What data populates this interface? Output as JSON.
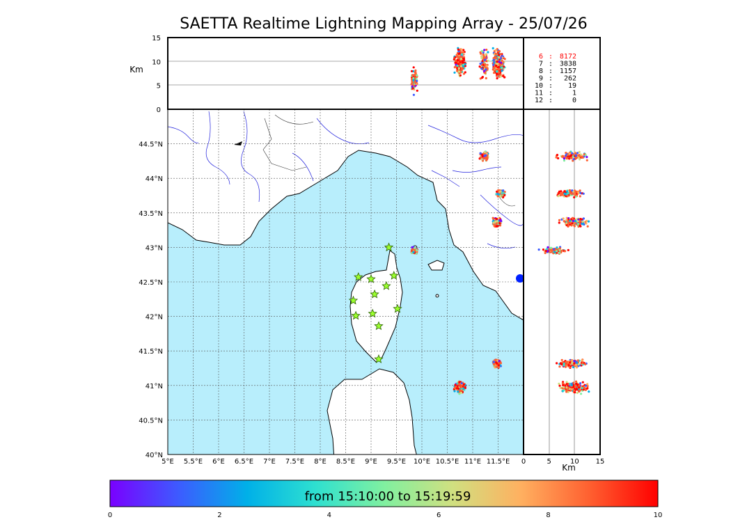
{
  "title": "SAETTA Realtime Lightning Mapping Array - 25/07/26",
  "colors": {
    "sea": "#b8eefc",
    "land": "#ffffff",
    "rivers": "#2222dd",
    "grid": "#555555",
    "station": "#9cff2e",
    "highlight_count": "#ff0000"
  },
  "map": {
    "lon_ticks": [
      "5°E",
      "5.5°E",
      "6°E",
      "6.5°E",
      "7°E",
      "7.5°E",
      "8°E",
      "8.5°E",
      "9°E",
      "9.5°E",
      "10°E",
      "10.5°E",
      "11°E",
      "11.5°E"
    ],
    "lat_ticks": [
      "40°N",
      "40.5°N",
      "41°N",
      "41.5°N",
      "42°N",
      "42.5°N",
      "43°N",
      "43.5°N",
      "44°N",
      "44.5°N"
    ],
    "lon_range": [
      5.0,
      12.0
    ],
    "lat_range": [
      40.0,
      45.0
    ],
    "station_icon": "star-icon",
    "stations": [
      {
        "lon": 9.35,
        "lat": 43.0
      },
      {
        "lon": 8.75,
        "lat": 42.57
      },
      {
        "lon": 9.0,
        "lat": 42.54
      },
      {
        "lon": 9.45,
        "lat": 42.59
      },
      {
        "lon": 9.3,
        "lat": 42.44
      },
      {
        "lon": 9.07,
        "lat": 42.32
      },
      {
        "lon": 8.65,
        "lat": 42.23
      },
      {
        "lon": 9.52,
        "lat": 42.11
      },
      {
        "lon": 8.7,
        "lat": 42.01
      },
      {
        "lon": 9.03,
        "lat": 42.04
      },
      {
        "lon": 9.15,
        "lat": 41.86
      },
      {
        "lon": 9.15,
        "lat": 41.38
      }
    ]
  },
  "altitude_axis": {
    "label": "Km",
    "ticks": [
      "0",
      "5",
      "10",
      "15"
    ],
    "range": [
      0,
      15
    ]
  },
  "side_axis": {
    "label": "Km",
    "ticks": [
      "0",
      "5",
      "10",
      "15"
    ]
  },
  "counts": [
    {
      "level": "6",
      "count": "8172",
      "highlight": true
    },
    {
      "level": "7",
      "count": "3838"
    },
    {
      "level": "8",
      "count": "1157"
    },
    {
      "level": "9",
      "count": "262"
    },
    {
      "level": "10",
      "count": "19"
    },
    {
      "level": "11",
      "count": "1"
    },
    {
      "level": "12",
      "count": "0"
    }
  ],
  "colorbar": {
    "caption": "from 15:10:00 to 15:19:59",
    "ticks": [
      "0",
      "2",
      "4",
      "6",
      "8",
      "10"
    ],
    "range": [
      0,
      10
    ],
    "colors": [
      "#7a00ff",
      "#3d5bff",
      "#00b0e8",
      "#2ee0d0",
      "#80f0a0",
      "#d0e080",
      "#ffb060",
      "#ff6030",
      "#ff0000"
    ]
  },
  "chart_data": {
    "type": "scatter",
    "description_free": true,
    "title": "SAETTA Realtime Lightning Mapping Array - 25/07/26",
    "xlim": [
      5.0,
      12.0
    ],
    "ylim": [
      40.0,
      45.0
    ],
    "clusters": [
      {
        "lon": 11.23,
        "lat": 44.32,
        "spread": 0.08,
        "alt": 9.5,
        "n": 90
      },
      {
        "lon": 11.55,
        "lat": 43.78,
        "spread": 0.07,
        "alt": 9.0,
        "n": 120
      },
      {
        "lon": 11.48,
        "lat": 43.36,
        "spread": 0.08,
        "alt": 10.0,
        "n": 150
      },
      {
        "lon": 9.85,
        "lat": 42.95,
        "spread": 0.06,
        "alt": 6.0,
        "n": 90
      },
      {
        "lon": 11.48,
        "lat": 41.32,
        "spread": 0.07,
        "alt": 9.5,
        "n": 160
      },
      {
        "lon": 10.75,
        "lat": 40.97,
        "spread": 0.1,
        "alt": 10.0,
        "n": 220
      }
    ]
  }
}
